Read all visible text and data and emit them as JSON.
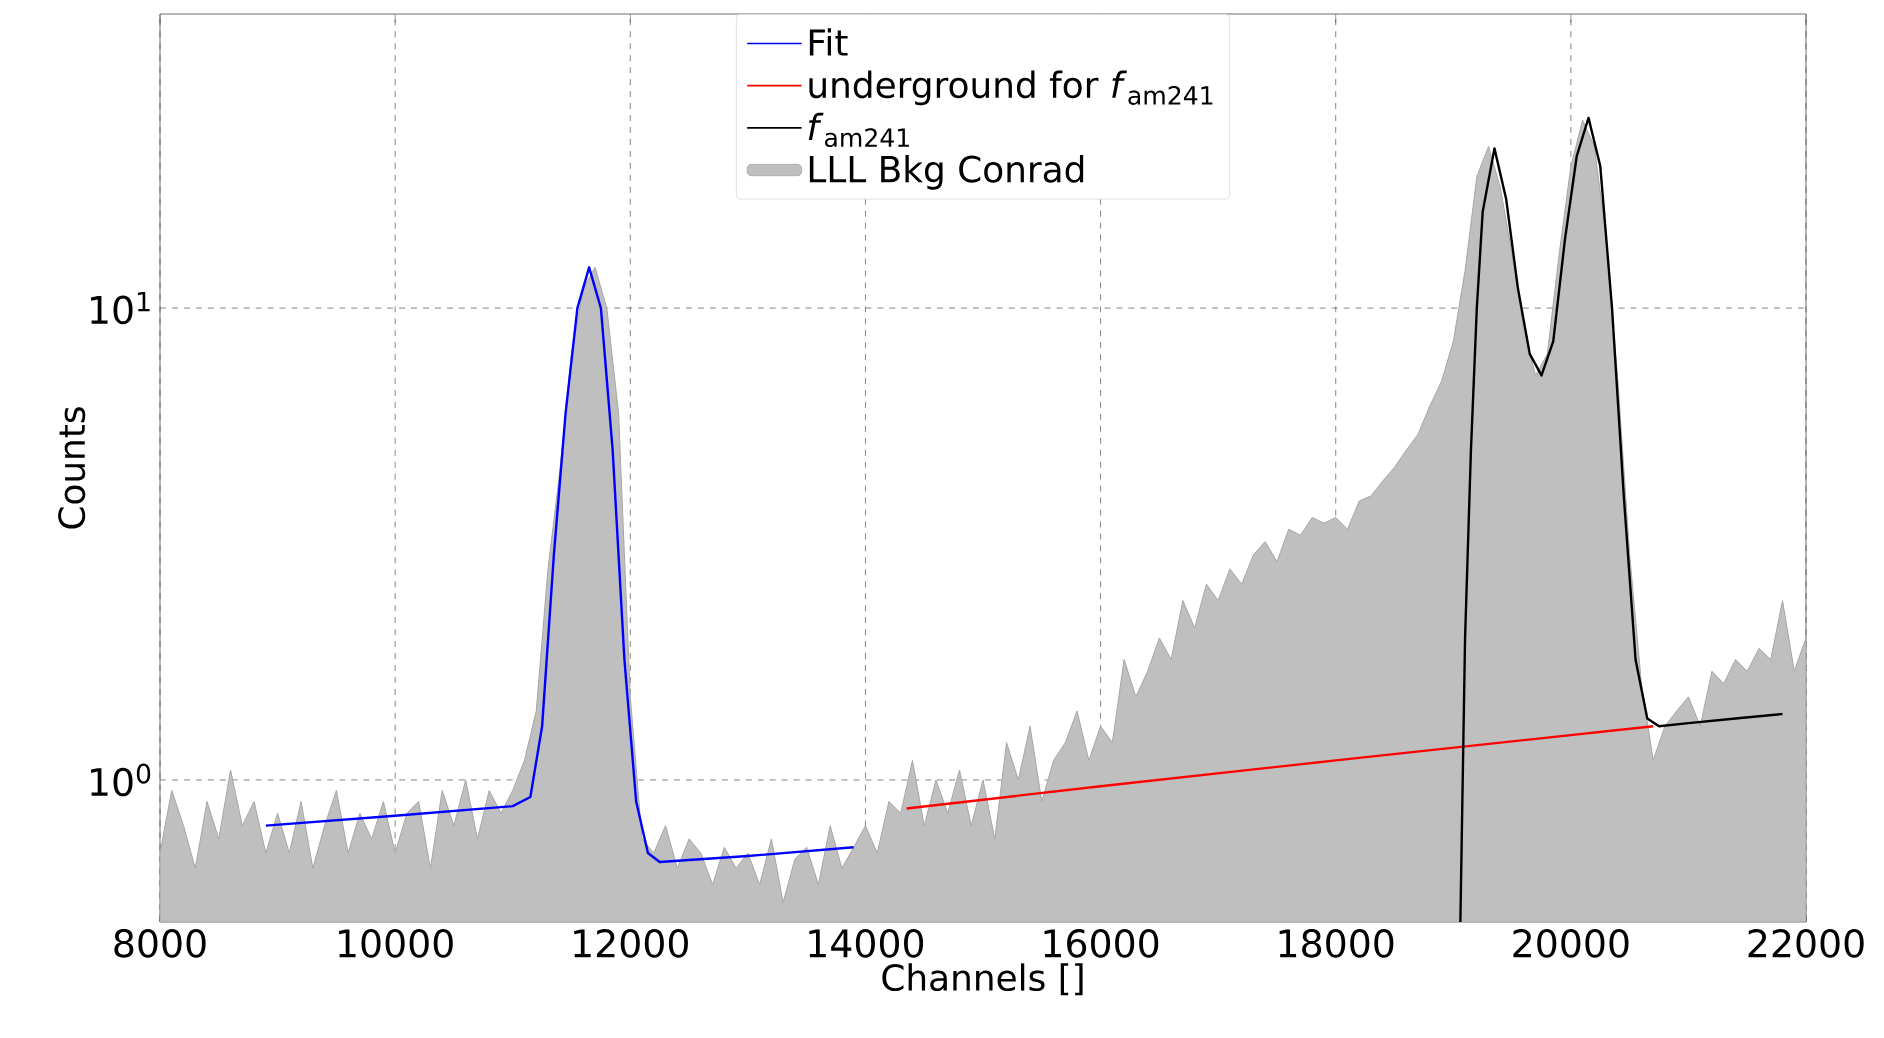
{
  "chart_data": {
    "type": "line",
    "xlabel": "Channels []",
    "ylabel": "Counts",
    "log": "y",
    "grid": true,
    "legend": "top",
    "xlim": [
      8000,
      22000
    ],
    "xticks": [
      8000,
      10000,
      12000,
      14000,
      16000,
      18000,
      20000,
      22000
    ],
    "ylim": [
      0.5,
      42
    ],
    "yticks": [
      {
        "value": 1,
        "label": "10$^{0}$"
      },
      {
        "value": 10,
        "label": "10$^{1}$"
      }
    ],
    "series": [
      {
        "name": "LLL Bkg Conrad",
        "type": "area",
        "color": "#bfbfbf",
        "x": [
          8000,
          8100,
          8200,
          8300,
          8400,
          8500,
          8600,
          8700,
          8800,
          8900,
          9000,
          9100,
          9200,
          9300,
          9400,
          9500,
          9600,
          9700,
          9800,
          9900,
          10000,
          10100,
          10200,
          10300,
          10400,
          10500,
          10600,
          10700,
          10800,
          10900,
          11000,
          11100,
          11200,
          11300,
          11400,
          11500,
          11600,
          11700,
          11800,
          11900,
          12000,
          12100,
          12200,
          12300,
          12400,
          12500,
          12600,
          12700,
          12800,
          12900,
          13000,
          13100,
          13200,
          13300,
          13400,
          13500,
          13600,
          13700,
          13800,
          13900,
          14000,
          14100,
          14200,
          14300,
          14400,
          14500,
          14600,
          14700,
          14800,
          14900,
          15000,
          15100,
          15200,
          15300,
          15400,
          15500,
          15600,
          15700,
          15800,
          15900,
          16000,
          16100,
          16200,
          16300,
          16400,
          16500,
          16600,
          16700,
          16800,
          16900,
          17000,
          17100,
          17200,
          17300,
          17400,
          17500,
          17600,
          17700,
          17800,
          17900,
          18000,
          18100,
          18200,
          18300,
          18400,
          18500,
          18600,
          18700,
          18800,
          18900,
          19000,
          19100,
          19200,
          19300,
          19400,
          19500,
          19600,
          19700,
          19800,
          19900,
          20000,
          20100,
          20200,
          20300,
          20400,
          20500,
          20600,
          20700,
          20800,
          20900,
          21000,
          21100,
          21200,
          21300,
          21400,
          21500,
          21600,
          21700,
          21800,
          21900,
          22000
        ],
        "values": [
          0.7,
          0.95,
          0.8,
          0.65,
          0.9,
          0.75,
          1.05,
          0.8,
          0.9,
          0.7,
          0.85,
          0.7,
          0.9,
          0.65,
          0.8,
          0.95,
          0.7,
          0.85,
          0.75,
          0.9,
          0.7,
          0.85,
          0.9,
          0.65,
          0.95,
          0.8,
          1.0,
          0.75,
          0.95,
          0.85,
          0.95,
          1.1,
          1.4,
          2.8,
          4.5,
          8,
          11,
          12.2,
          10,
          6,
          1.5,
          0.75,
          0.7,
          0.8,
          0.65,
          0.75,
          0.7,
          0.6,
          0.72,
          0.65,
          0.7,
          0.6,
          0.75,
          0.55,
          0.68,
          0.72,
          0.6,
          0.8,
          0.65,
          0.72,
          0.8,
          0.7,
          0.9,
          0.85,
          1.1,
          0.8,
          1.0,
          0.85,
          1.05,
          0.8,
          1.0,
          0.75,
          1.2,
          1.0,
          1.3,
          0.9,
          1.1,
          1.2,
          1.4,
          1.1,
          1.3,
          1.2,
          1.8,
          1.5,
          1.7,
          2.0,
          1.8,
          2.4,
          2.1,
          2.6,
          2.4,
          2.8,
          2.6,
          3.0,
          3.2,
          2.9,
          3.4,
          3.3,
          3.6,
          3.5,
          3.6,
          3.4,
          3.9,
          4.0,
          4.3,
          4.6,
          5.0,
          5.4,
          6.2,
          7.0,
          8.5,
          12,
          19,
          22,
          18,
          13,
          9,
          7.2,
          8,
          13,
          20,
          25,
          22,
          14,
          7,
          3,
          1.6,
          1.1,
          1.3,
          1.4,
          1.5,
          1.3,
          1.7,
          1.6,
          1.8,
          1.7,
          1.9,
          1.8,
          2.4,
          1.7,
          2.0
        ]
      },
      {
        "name": "Fit",
        "color": "#0000ff",
        "x": [
          8900,
          10000,
          11000,
          11150,
          11250,
          11350,
          11450,
          11550,
          11650,
          11750,
          11850,
          11950,
          12050,
          12150,
          12250,
          13000,
          13900
        ],
        "values": [
          0.8,
          0.84,
          0.88,
          0.92,
          1.3,
          3,
          6,
          10,
          12.2,
          10,
          5,
          1.8,
          0.9,
          0.7,
          0.67,
          0.69,
          0.72
        ]
      },
      {
        "name": "underground for *f*$_{am241}$",
        "color": "#ff0000",
        "x": [
          14350,
          16000,
          18000,
          20700
        ],
        "values": [
          0.87,
          0.97,
          1.1,
          1.3
        ]
      },
      {
        "name": "*f*$_{am241}$",
        "color": "#000000",
        "x": [
          19060,
          19080,
          19100,
          19150,
          19200,
          19250,
          19350,
          19450,
          19550,
          19650,
          19750,
          19850,
          19950,
          20050,
          20150,
          20250,
          20350,
          20450,
          20550,
          20650,
          20750,
          21000,
          21400,
          21800
        ],
        "values": [
          0.5,
          1,
          2,
          5,
          10,
          16,
          21.8,
          17,
          11,
          8,
          7.2,
          8.5,
          14,
          21,
          25.3,
          20,
          10,
          4,
          1.8,
          1.35,
          1.3,
          1.32,
          1.35,
          1.38
        ]
      }
    ]
  }
}
